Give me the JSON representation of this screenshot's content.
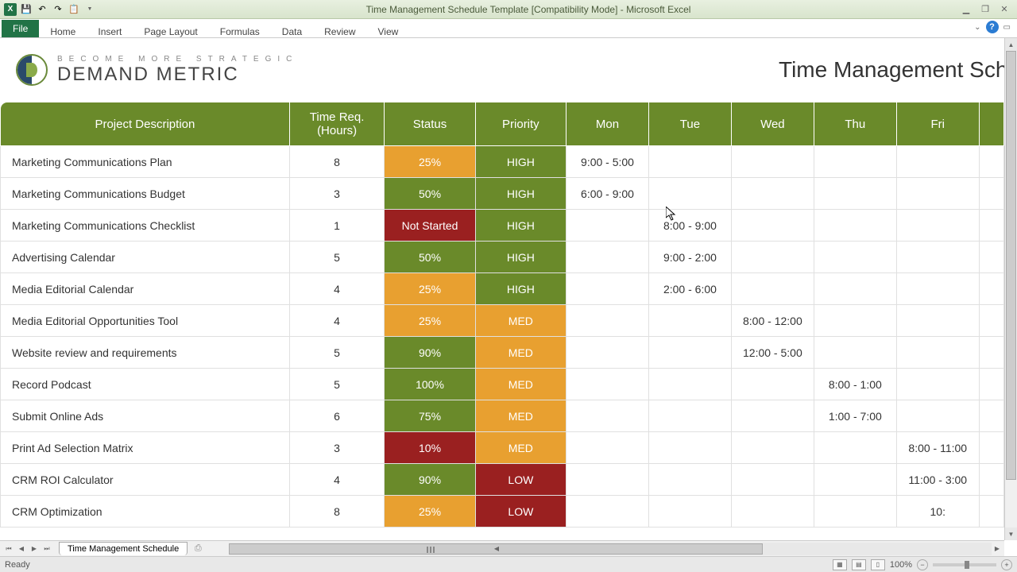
{
  "app": {
    "title": "Time Management Schedule Template  [Compatibility Mode]  -  Microsoft Excel"
  },
  "ribbon": {
    "file": "File",
    "tabs": [
      "Home",
      "Insert",
      "Page Layout",
      "Formulas",
      "Data",
      "Review",
      "View"
    ]
  },
  "brand": {
    "tagline": "Become More Strategic",
    "name": "DEMAND METRIC",
    "page_title": "Time Management Sche"
  },
  "table": {
    "headers": {
      "desc": "Project Description",
      "time": "Time Req. (Hours)",
      "status": "Status",
      "priority": "Priority",
      "mon": "Mon",
      "tue": "Tue",
      "wed": "Wed",
      "thu": "Thu",
      "fri": "Fri"
    },
    "header_bg": "#6a8a2a",
    "colors": {
      "green": "#6a8a2a",
      "orange": "#e8a030",
      "red": "#9a2020"
    },
    "rows": [
      {
        "desc": "Marketing Communications Plan",
        "time": "8",
        "status": "25%",
        "status_color": "orange",
        "priority": "HIGH",
        "priority_color": "green",
        "mon": "9:00 - 5:00",
        "tue": "",
        "wed": "",
        "thu": "",
        "fri": ""
      },
      {
        "desc": "Marketing Communications Budget",
        "time": "3",
        "status": "50%",
        "status_color": "green",
        "priority": "HIGH",
        "priority_color": "green",
        "mon": "6:00 - 9:00",
        "tue": "",
        "wed": "",
        "thu": "",
        "fri": ""
      },
      {
        "desc": "Marketing Communications Checklist",
        "time": "1",
        "status": "Not Started",
        "status_color": "red",
        "priority": "HIGH",
        "priority_color": "green",
        "mon": "",
        "tue": "8:00 - 9:00",
        "wed": "",
        "thu": "",
        "fri": ""
      },
      {
        "desc": "Advertising Calendar",
        "time": "5",
        "status": "50%",
        "status_color": "green",
        "priority": "HIGH",
        "priority_color": "green",
        "mon": "",
        "tue": "9:00 - 2:00",
        "wed": "",
        "thu": "",
        "fri": ""
      },
      {
        "desc": "Media Editorial Calendar",
        "time": "4",
        "status": "25%",
        "status_color": "orange",
        "priority": "HIGH",
        "priority_color": "green",
        "mon": "",
        "tue": "2:00 - 6:00",
        "wed": "",
        "thu": "",
        "fri": ""
      },
      {
        "desc": "Media Editorial Opportunities Tool",
        "time": "4",
        "status": "25%",
        "status_color": "orange",
        "priority": "MED",
        "priority_color": "orange",
        "mon": "",
        "tue": "",
        "wed": "8:00 - 12:00",
        "thu": "",
        "fri": ""
      },
      {
        "desc": "Website review and requirements",
        "time": "5",
        "status": "90%",
        "status_color": "green",
        "priority": "MED",
        "priority_color": "orange",
        "mon": "",
        "tue": "",
        "wed": "12:00 - 5:00",
        "thu": "",
        "fri": ""
      },
      {
        "desc": "Record Podcast",
        "time": "5",
        "status": "100%",
        "status_color": "green",
        "priority": "MED",
        "priority_color": "orange",
        "mon": "",
        "tue": "",
        "wed": "",
        "thu": "8:00 - 1:00",
        "fri": ""
      },
      {
        "desc": "Submit Online Ads",
        "time": "6",
        "status": "75%",
        "status_color": "green",
        "priority": "MED",
        "priority_color": "orange",
        "mon": "",
        "tue": "",
        "wed": "",
        "thu": "1:00 - 7:00",
        "fri": ""
      },
      {
        "desc": "Print Ad Selection Matrix",
        "time": "3",
        "status": "10%",
        "status_color": "red",
        "priority": "MED",
        "priority_color": "orange",
        "mon": "",
        "tue": "",
        "wed": "",
        "thu": "",
        "fri": "8:00 - 11:00"
      },
      {
        "desc": "CRM ROI Calculator",
        "time": "4",
        "status": "90%",
        "status_color": "green",
        "priority": "LOW",
        "priority_color": "red",
        "mon": "",
        "tue": "",
        "wed": "",
        "thu": "",
        "fri": "11:00 - 3:00"
      },
      {
        "desc": "CRM Optimization",
        "time": "8",
        "status": "25%",
        "status_color": "orange",
        "priority": "LOW",
        "priority_color": "red",
        "mon": "",
        "tue": "",
        "wed": "",
        "thu": "",
        "fri": "10:"
      }
    ]
  },
  "sheet": {
    "name": "Time Management Schedule"
  },
  "statusbar": {
    "ready": "Ready",
    "zoom": "100%"
  }
}
